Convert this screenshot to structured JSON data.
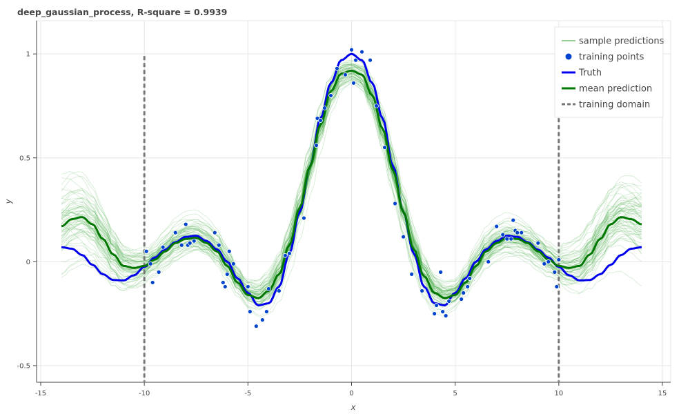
{
  "chart_data": {
    "type": "line",
    "title": "deep_gaussian_process, R-square = 0.9939",
    "xlabel": "x",
    "ylabel": "y",
    "xlim": [
      -15.2,
      15.4
    ],
    "ylim": [
      -0.58,
      1.16
    ],
    "xticks": [
      "-15",
      "-10",
      "-5",
      "0",
      "5",
      "10",
      "15"
    ],
    "yticks": [
      "-0.5",
      "0",
      "0.5",
      "1"
    ],
    "grid": true,
    "legend_position": "top-right",
    "legend": [
      {
        "label": "sample predictions",
        "style": "line-thin"
      },
      {
        "label": "training points",
        "style": "marker"
      },
      {
        "label": "Truth",
        "style": "line-thick"
      },
      {
        "label": "mean prediction",
        "style": "line-thick"
      },
      {
        "label": "training domain",
        "style": "dashed"
      }
    ],
    "colors": {
      "sample": "#2ca02c",
      "training_points": "#0044cc",
      "truth": "#0000ee",
      "mean": "#007700",
      "domain": "#777777"
    },
    "training_domain": [
      -10,
      10
    ],
    "series": [
      {
        "name": "Truth",
        "x": [
          -14,
          -13.5,
          -13,
          -12.5,
          -12,
          -11.5,
          -11,
          -10.5,
          -10,
          -9.5,
          -9,
          -8.5,
          -8,
          -7.5,
          -7,
          -6.5,
          -6,
          -5.5,
          -5,
          -4.5,
          -4,
          -3.5,
          -3,
          -2.5,
          -2,
          -1.5,
          -1,
          -0.5,
          0,
          0.5,
          1,
          1.5,
          2,
          2.5,
          3,
          3.5,
          4,
          4.5,
          5,
          5.5,
          6,
          6.5,
          7,
          7.5,
          8,
          8.5,
          9,
          9.5,
          10,
          10.5,
          11,
          11.5,
          12,
          12.5,
          13,
          13.5,
          14
        ],
        "y": [
          0.07,
          0.063,
          0.032,
          -0.015,
          -0.06,
          -0.088,
          -0.09,
          -0.065,
          -0.025,
          0.02,
          0.058,
          0.094,
          0.12,
          0.125,
          0.1,
          0.06,
          0.0,
          -0.08,
          -0.15,
          -0.21,
          -0.2,
          -0.12,
          0.04,
          0.24,
          0.46,
          0.69,
          0.86,
          0.97,
          1.0,
          0.97,
          0.86,
          0.69,
          0.46,
          0.24,
          0.04,
          -0.12,
          -0.2,
          -0.21,
          -0.15,
          -0.08,
          0.0,
          0.06,
          0.1,
          0.125,
          0.12,
          0.094,
          0.058,
          0.02,
          -0.025,
          -0.065,
          -0.09,
          -0.088,
          -0.06,
          -0.015,
          0.032,
          0.063,
          0.07
        ]
      },
      {
        "name": "mean prediction",
        "x": [
          -14,
          -13.5,
          -13,
          -12.5,
          -12,
          -11.5,
          -11,
          -10.5,
          -10,
          -9.5,
          -9,
          -8.5,
          -8,
          -7.5,
          -7,
          -6.5,
          -6,
          -5.5,
          -5,
          -4.5,
          -4,
          -3.5,
          -3,
          -2.5,
          -2,
          -1.5,
          -1,
          -0.5,
          0,
          0.5,
          1,
          1.5,
          2,
          2.5,
          3,
          3.5,
          4,
          4.5,
          5,
          5.5,
          6,
          6.5,
          7,
          7.5,
          8,
          8.5,
          9,
          9.5,
          10,
          10.5,
          11,
          11.5,
          12,
          12.5,
          13,
          13.5,
          14
        ],
        "y": [
          0.17,
          0.205,
          0.215,
          0.18,
          0.11,
          0.035,
          -0.02,
          -0.03,
          -0.02,
          0.01,
          0.05,
          0.09,
          0.11,
          0.115,
          0.09,
          0.05,
          -0.02,
          -0.1,
          -0.16,
          -0.175,
          -0.14,
          -0.06,
          0.08,
          0.26,
          0.46,
          0.66,
          0.82,
          0.905,
          0.92,
          0.9,
          0.8,
          0.64,
          0.44,
          0.24,
          0.06,
          -0.07,
          -0.15,
          -0.175,
          -0.16,
          -0.1,
          -0.02,
          0.05,
          0.09,
          0.115,
          0.11,
          0.09,
          0.05,
          0.01,
          -0.02,
          -0.03,
          -0.02,
          0.035,
          0.11,
          0.18,
          0.215,
          0.205,
          0.18
        ]
      }
    ],
    "sample_predictions": {
      "count": 60,
      "x_range": [
        -14,
        14
      ],
      "approx_spread_edges": 0.22,
      "approx_spread_center": 0.07
    },
    "training_points": {
      "x": [
        -9.9,
        -9.7,
        -9.6,
        -9.3,
        -9.1,
        -8.5,
        -8.2,
        -8.0,
        -7.9,
        -7.8,
        -7.6,
        -6.6,
        -6.4,
        -6.2,
        -6.1,
        -6.0,
        -5.9,
        -5.7,
        -5.0,
        -4.9,
        -4.6,
        -4.3,
        -4.1,
        -4.0,
        -3.5,
        -3.2,
        -3.0,
        -2.3,
        -1.7,
        -1.65,
        -1.5,
        -1.3,
        -1.0,
        -0.7,
        -0.3,
        0.0,
        0.1,
        0.2,
        0.5,
        0.9,
        1.2,
        1.6,
        2.1,
        2.5,
        2.9,
        3.4,
        4.0,
        4.1,
        4.3,
        4.4,
        4.55,
        4.7,
        5.3,
        5.4,
        5.6,
        5.7,
        6.6,
        7.0,
        7.3,
        7.5,
        7.7,
        7.8,
        7.9,
        8.0,
        8.2,
        9.0,
        9.3,
        9.5,
        9.8,
        9.9,
        10.0
      ],
      "y": [
        0.05,
        -0.01,
        -0.1,
        -0.05,
        0.07,
        0.14,
        0.08,
        0.18,
        0.08,
        0.09,
        0.1,
        0.14,
        0.08,
        -0.1,
        -0.12,
        -0.06,
        0.05,
        -0.01,
        -0.12,
        -0.24,
        -0.31,
        -0.28,
        -0.24,
        -0.13,
        -0.14,
        0.03,
        0.04,
        0.21,
        0.56,
        0.69,
        0.68,
        0.74,
        0.8,
        0.93,
        0.9,
        1.02,
        0.86,
        0.97,
        1.01,
        0.97,
        0.75,
        0.55,
        0.28,
        0.12,
        -0.06,
        -0.14,
        -0.25,
        -0.21,
        -0.05,
        -0.24,
        -0.26,
        -0.19,
        -0.18,
        -0.15,
        -0.12,
        -0.08,
        0.0,
        0.17,
        0.13,
        0.11,
        0.11,
        0.2,
        0.15,
        0.14,
        0.14,
        0.09,
        -0.01,
        0.0,
        -0.05,
        -0.12,
        0.01
      ]
    }
  }
}
